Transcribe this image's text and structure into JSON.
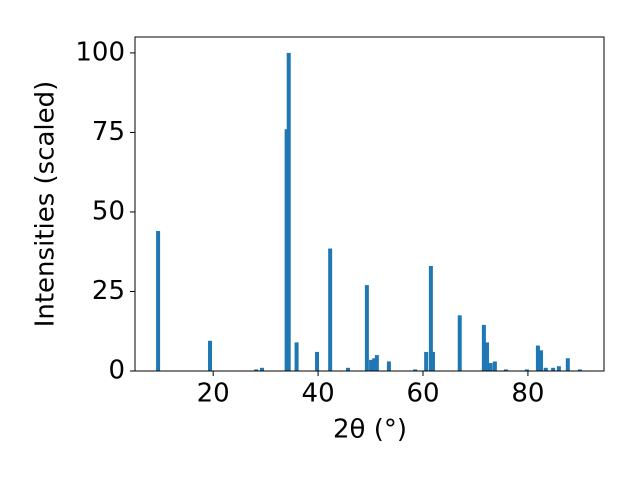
{
  "chart_data": {
    "type": "bar",
    "xlabel": "2θ (°)",
    "ylabel": "Intensities (scaled)",
    "color": "#1f77b4",
    "x": [
      9.5,
      19.4,
      28.2,
      29.3,
      34.0,
      34.4,
      35.9,
      39.8,
      42.3,
      45.7,
      49.3,
      50.1,
      50.7,
      51.2,
      53.5,
      58.5,
      60.6,
      61.5,
      61.9,
      67.0,
      71.6,
      72.2,
      72.9,
      73.7,
      75.8,
      79.8,
      81.9,
      82.5,
      83.4,
      84.8,
      85.9,
      87.6,
      89.9
    ],
    "values": [
      44,
      9.5,
      0.5,
      1,
      76,
      100,
      9,
      6,
      38.5,
      1,
      27,
      3.5,
      4,
      5,
      3,
      0.5,
      6,
      33,
      6,
      17.5,
      14.5,
      9,
      2.5,
      3,
      0.5,
      0.5,
      8,
      6.5,
      1,
      1,
      1.5,
      4,
      0.5
    ],
    "xlim": [
      5.1,
      94.5
    ],
    "ylim": [
      0,
      105
    ],
    "xticks": [
      20,
      40,
      60,
      80
    ],
    "yticks": [
      0,
      25,
      50,
      75,
      100
    ]
  }
}
